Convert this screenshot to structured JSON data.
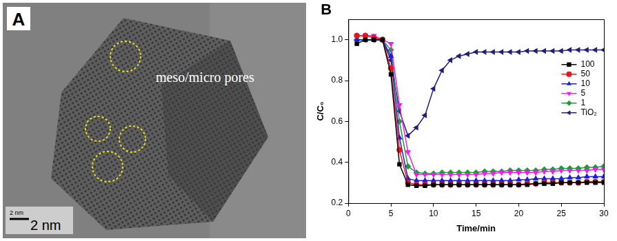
{
  "panel_a": {
    "panel_label": "A",
    "annotation": "meso/micro pores",
    "scale_bar_labels": [
      "2 nm",
      "2 nm"
    ]
  },
  "chart_data": {
    "type": "line",
    "panel_label": "B",
    "x_label": "Time/min",
    "y_label": "C/C₀",
    "x": [
      1,
      2,
      3,
      4,
      5,
      6,
      7,
      8,
      9,
      10,
      11,
      12,
      13,
      14,
      15,
      16,
      17,
      18,
      19,
      20,
      21,
      22,
      23,
      24,
      25,
      26,
      27,
      28,
      29,
      30
    ],
    "xlim": [
      0,
      30
    ],
    "xticks": [
      0,
      5,
      10,
      15,
      20,
      25,
      30
    ],
    "ylim": [
      0.2,
      1.1
    ],
    "yticks": [
      0.2,
      0.4,
      0.6,
      0.8,
      {
        "value": 1,
        "label": "1.0"
      }
    ],
    "grid": false,
    "legend": "right",
    "series": [
      {
        "name": "100",
        "color": "#000000",
        "marker": "square",
        "values": [
          0.98,
          1.0,
          1.0,
          1.0,
          0.83,
          0.39,
          0.29,
          0.285,
          0.285,
          0.29,
          0.29,
          0.29,
          0.29,
          0.29,
          0.29,
          0.29,
          0.29,
          0.29,
          0.29,
          0.29,
          0.29,
          0.295,
          0.295,
          0.295,
          0.3,
          0.3,
          0.3,
          0.3,
          0.3,
          0.3
        ]
      },
      {
        "name": "50",
        "color": "#e8141c",
        "marker": "circle",
        "values": [
          1.02,
          1.02,
          1.01,
          1.0,
          0.86,
          0.46,
          0.3,
          0.29,
          0.29,
          0.29,
          0.29,
          0.29,
          0.29,
          0.29,
          0.29,
          0.29,
          0.29,
          0.29,
          0.29,
          0.29,
          0.295,
          0.295,
          0.3,
          0.3,
          0.3,
          0.3,
          0.3,
          0.305,
          0.305,
          0.305
        ]
      },
      {
        "name": "10",
        "color": "#1c1ce0",
        "marker": "triangle_up",
        "values": [
          1.0,
          1.0,
          1.0,
          1.0,
          0.92,
          0.52,
          0.32,
          0.31,
          0.31,
          0.31,
          0.31,
          0.31,
          0.31,
          0.31,
          0.31,
          0.31,
          0.31,
          0.31,
          0.31,
          0.315,
          0.315,
          0.32,
          0.32,
          0.32,
          0.32,
          0.325,
          0.325,
          0.33,
          0.33,
          0.33
        ]
      },
      {
        "name": "5",
        "color": "#f01cf0",
        "marker": "triangle_down",
        "values": [
          1.02,
          1.02,
          1.02,
          1.0,
          0.98,
          0.68,
          0.45,
          0.34,
          0.34,
          0.34,
          0.34,
          0.34,
          0.34,
          0.34,
          0.34,
          0.345,
          0.345,
          0.35,
          0.35,
          0.35,
          0.35,
          0.35,
          0.355,
          0.355,
          0.36,
          0.36,
          0.36,
          0.36,
          0.365,
          0.365
        ]
      },
      {
        "name": "1",
        "color": "#1e9a3a",
        "marker": "diamond",
        "values": [
          1.0,
          1.0,
          1.0,
          1.0,
          0.95,
          0.6,
          0.38,
          0.35,
          0.345,
          0.345,
          0.35,
          0.35,
          0.35,
          0.35,
          0.35,
          0.355,
          0.355,
          0.355,
          0.36,
          0.36,
          0.36,
          0.36,
          0.365,
          0.365,
          0.37,
          0.37,
          0.37,
          0.375,
          0.375,
          0.38
        ]
      },
      {
        "name": "TiO₂",
        "color": "#1f1f7a",
        "marker": "triangle_left",
        "values": [
          1.0,
          1.0,
          1.0,
          1.0,
          0.9,
          0.65,
          0.53,
          0.57,
          0.63,
          0.76,
          0.85,
          0.9,
          0.92,
          0.93,
          0.94,
          0.94,
          0.94,
          0.94,
          0.94,
          0.94,
          0.945,
          0.945,
          0.945,
          0.945,
          0.945,
          0.95,
          0.95,
          0.95,
          0.95,
          0.95
        ]
      }
    ]
  }
}
